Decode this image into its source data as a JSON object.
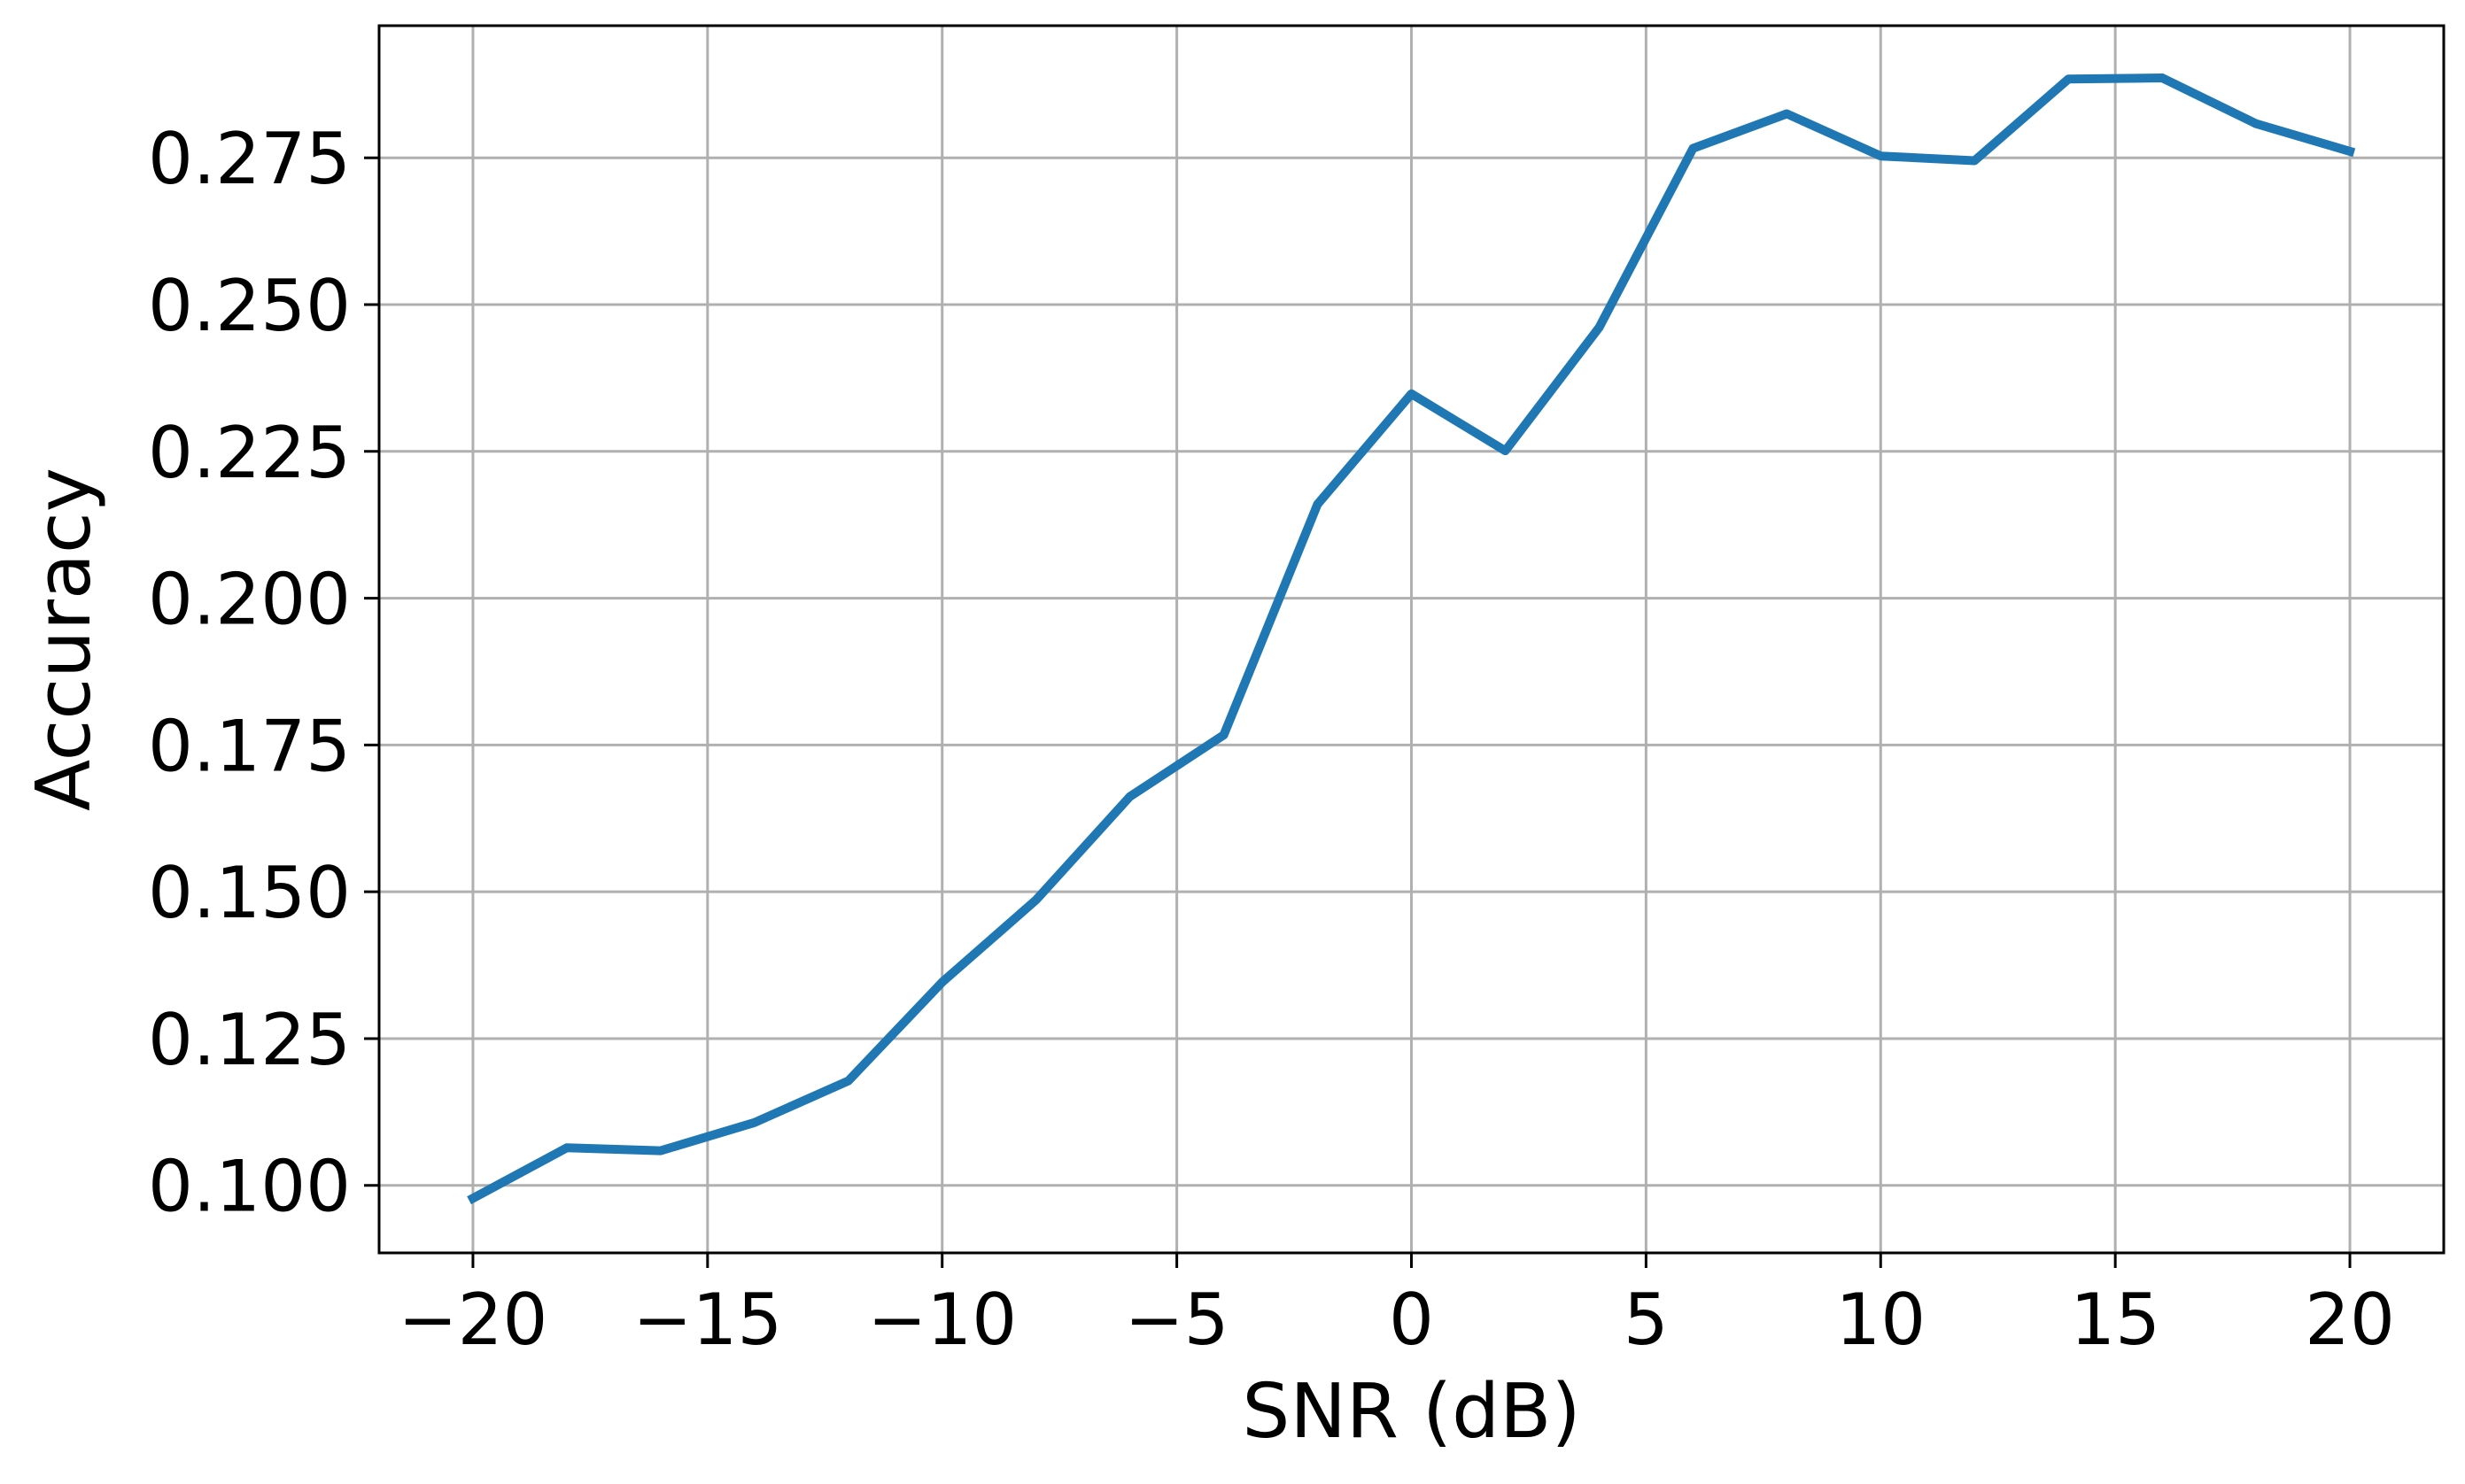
{
  "chart_data": {
    "type": "line",
    "title": "",
    "xlabel": "SNR (dB)",
    "ylabel": "Accuracy",
    "xlim": [
      -22,
      22
    ],
    "ylim": [
      0.0885,
      0.2975
    ],
    "xticks": [
      -20,
      -15,
      -10,
      -5,
      0,
      5,
      10,
      15,
      20
    ],
    "xtick_labels": [
      "−20",
      "−15",
      "−10",
      "−5",
      "0",
      "5",
      "10",
      "15",
      "20"
    ],
    "yticks": [
      0.1,
      0.125,
      0.15,
      0.175,
      0.2,
      0.225,
      0.25,
      0.275
    ],
    "ytick_labels": [
      "0.100",
      "0.125",
      "0.150",
      "0.175",
      "0.200",
      "0.225",
      "0.250",
      "0.275"
    ],
    "grid": true,
    "legend": "none",
    "series": [
      {
        "color": "#1f77b4",
        "x": [
          -20,
          -18,
          -16,
          -14,
          -12,
          -10,
          -8,
          -6,
          -4,
          -2,
          0,
          2,
          4,
          6,
          8,
          10,
          12,
          14,
          16,
          18,
          20
        ],
        "values": [
          0.0978,
          0.1064,
          0.1059,
          0.1107,
          0.1178,
          0.1346,
          0.1486,
          0.1662,
          0.1767,
          0.216,
          0.2348,
          0.2251,
          0.2461,
          0.2766,
          0.2825,
          0.2753,
          0.2745,
          0.2884,
          0.2886,
          0.2808,
          0.2761
        ]
      }
    ]
  }
}
